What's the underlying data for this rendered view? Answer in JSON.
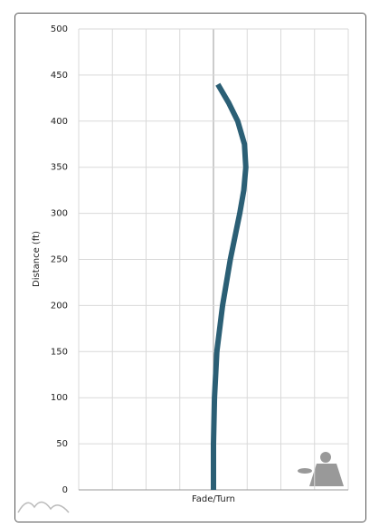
{
  "chart_data": {
    "type": "line",
    "x_label": "Fade/Turn",
    "y_label": "Distance (ft)",
    "x": [
      0,
      0,
      0.03,
      0.1,
      0.27,
      0.5,
      0.78,
      0.9,
      0.96,
      0.92,
      0.72,
      0.45,
      0.13
    ],
    "values": [
      0,
      50,
      100,
      150,
      200,
      250,
      300,
      325,
      350,
      375,
      400,
      420,
      440
    ],
    "color": "#2b5f75",
    "xlim": [
      -4,
      4
    ],
    "xticks": [
      -4,
      -3,
      -2,
      -1,
      0,
      1,
      2,
      3,
      4
    ],
    "ylim": [
      0,
      500
    ],
    "yticks": [
      0,
      50,
      100,
      150,
      200,
      250,
      300,
      350,
      400,
      450,
      500
    ],
    "grid": true
  }
}
